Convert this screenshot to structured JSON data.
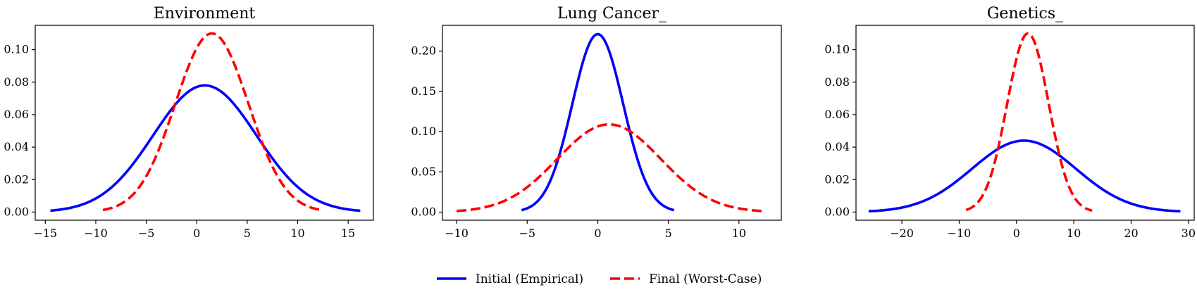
{
  "chart_data": [
    {
      "type": "line",
      "title": "Environment",
      "xlabel": "",
      "ylabel": "",
      "xlim": [
        -16,
        17.5
      ],
      "ylim": [
        -0.005,
        0.115
      ],
      "xticks": [
        -15,
        -10,
        -5,
        0,
        5,
        10,
        15
      ],
      "xtick_labels": [
        "−15",
        "−10",
        "−5",
        "0",
        "5",
        "10",
        "15"
      ],
      "yticks": [
        0.0,
        0.02,
        0.04,
        0.06,
        0.08,
        0.1
      ],
      "ytick_labels": [
        "0.00",
        "0.02",
        "0.04",
        "0.06",
        "0.08",
        "0.10"
      ],
      "grid": false,
      "series": [
        {
          "name": "Initial (Empirical)",
          "color": "#0000ff",
          "style": "solid",
          "mean": 0.8,
          "peak": 0.078,
          "x_range": [
            -14.5,
            16.2
          ]
        },
        {
          "name": "Final (Worst-Case)",
          "color": "#ff0000",
          "style": "dashed",
          "mean": 1.5,
          "peak": 0.11,
          "x_range": [
            -9.3,
            12.2
          ]
        }
      ]
    },
    {
      "type": "line",
      "title": "Lung Cancer_",
      "xlabel": "",
      "ylabel": "",
      "xlim": [
        -11,
        13
      ],
      "ylim": [
        -0.01,
        0.232
      ],
      "xticks": [
        -10,
        -5,
        0,
        5,
        10
      ],
      "xtick_labels": [
        "−10",
        "−5",
        "0",
        "5",
        "10"
      ],
      "yticks": [
        0.0,
        0.05,
        0.1,
        0.15,
        0.2
      ],
      "ytick_labels": [
        "0.00",
        "0.05",
        "0.10",
        "0.15",
        "0.20"
      ],
      "grid": false,
      "series": [
        {
          "name": "Initial (Empirical)",
          "color": "#0000ff",
          "style": "solid",
          "mean": 0.0,
          "peak": 0.221,
          "x_range": [
            -5.4,
            5.4
          ]
        },
        {
          "name": "Final (Worst-Case)",
          "color": "#ff0000",
          "style": "dashed",
          "mean": 0.8,
          "peak": 0.109,
          "x_range": [
            -10.0,
            11.7
          ]
        }
      ]
    },
    {
      "type": "line",
      "title": "Genetics_",
      "xlabel": "",
      "ylabel": "",
      "xlim": [
        -28,
        31
      ],
      "ylim": [
        -0.005,
        0.115
      ],
      "xticks": [
        -20,
        -10,
        0,
        10,
        20,
        30
      ],
      "xtick_labels": [
        "−20",
        "−10",
        "0",
        "10",
        "20",
        "30"
      ],
      "yticks": [
        0.0,
        0.02,
        0.04,
        0.06,
        0.08,
        0.1
      ],
      "ytick_labels": [
        "0.00",
        "0.02",
        "0.04",
        "0.06",
        "0.08",
        "0.10"
      ],
      "grid": false,
      "series": [
        {
          "name": "Initial (Empirical)",
          "color": "#0000ff",
          "style": "solid",
          "mean": 1.3,
          "peak": 0.044,
          "x_range": [
            -25.8,
            28.6
          ]
        },
        {
          "name": "Final (Worst-Case)",
          "color": "#ff0000",
          "style": "dashed",
          "mean": 2.0,
          "peak": 0.11,
          "x_range": [
            -8.8,
            13.2
          ]
        }
      ]
    }
  ],
  "legend": {
    "placement": "bottom-center",
    "items": [
      {
        "label": "Initial (Empirical)",
        "color": "#0000ff",
        "style": "solid"
      },
      {
        "label": "Final (Worst-Case)",
        "color": "#ff0000",
        "style": "dashed"
      }
    ]
  }
}
